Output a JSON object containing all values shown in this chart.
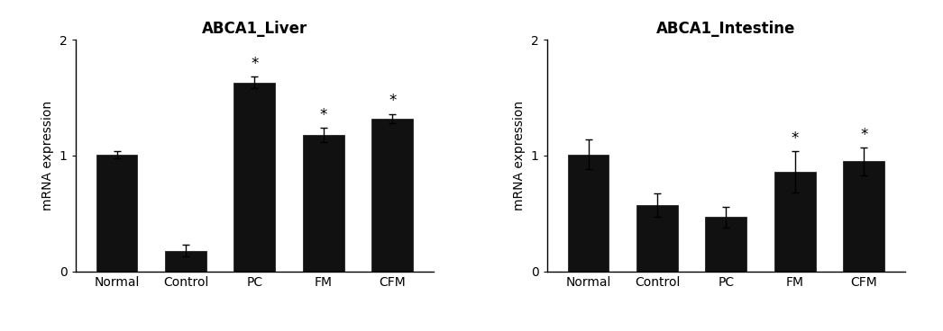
{
  "left_chart": {
    "title": "ABCA1_Liver",
    "categories": [
      "Normal",
      "Control",
      "PC",
      "FM",
      "CFM"
    ],
    "values": [
      1.01,
      0.18,
      1.63,
      1.18,
      1.32
    ],
    "errors": [
      0.03,
      0.05,
      0.05,
      0.06,
      0.04
    ],
    "significance": [
      false,
      false,
      true,
      true,
      true
    ],
    "ylabel": "mRNA expression",
    "ylim": [
      0,
      2.0
    ],
    "yticks": [
      0,
      1,
      2
    ]
  },
  "right_chart": {
    "title": "ABCA1_Intestine",
    "categories": [
      "Normal",
      "Control",
      "PC",
      "FM",
      "CFM"
    ],
    "values": [
      1.01,
      0.57,
      0.47,
      0.86,
      0.95
    ],
    "errors": [
      0.13,
      0.1,
      0.09,
      0.18,
      0.12
    ],
    "significance": [
      false,
      false,
      false,
      true,
      true
    ],
    "ylabel": "mRNA expression",
    "ylim": [
      0,
      2.0
    ],
    "yticks": [
      0,
      1,
      2
    ]
  },
  "bar_color": "#111111",
  "bar_width": 0.6,
  "title_fontsize": 12,
  "label_fontsize": 10,
  "tick_fontsize": 10,
  "star_fontsize": 12,
  "background_color": "#ffffff",
  "figure_width": 10.46,
  "figure_height": 3.68
}
